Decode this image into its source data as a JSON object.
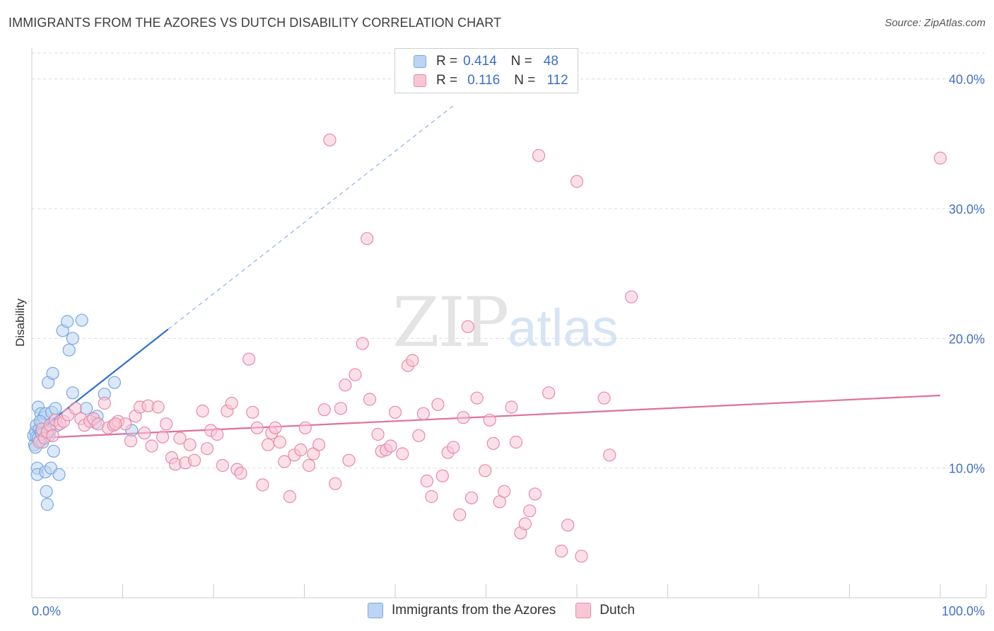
{
  "title": "IMMIGRANTS FROM THE AZORES VS DUTCH DISABILITY CORRELATION CHART",
  "source": "Source: ZipAtlas.com",
  "watermark": {
    "zip": "ZIP",
    "atlas": "atlas"
  },
  "legend": {
    "rows": [
      {
        "r_label": "R =",
        "r_value": "0.414",
        "n_label": "N =",
        "n_value": "48",
        "color": "#a9c8f0"
      },
      {
        "r_label": "R =",
        "r_value": "0.116",
        "n_label": "N =",
        "n_value": "112",
        "color": "#f5b3c8"
      }
    ]
  },
  "chart_data": {
    "type": "scatter",
    "xlabel": "",
    "ylabel": "Disability",
    "xlim": [
      0,
      100
    ],
    "ylim": [
      0,
      42
    ],
    "x_tick_labels": [
      "0.0%",
      "100.0%"
    ],
    "y_ticks": [
      10,
      20,
      30,
      40
    ],
    "y_tick_labels": [
      "10.0%",
      "20.0%",
      "30.0%",
      "40.0%"
    ],
    "grid": "horizontal dashed",
    "legend_position": "bottom",
    "series": [
      {
        "name": "Immigrants from the Azores",
        "color": "#7aa7e0",
        "fill": "#bcd5f3",
        "trend": {
          "x0": 0.3,
          "y0": 12.6,
          "x1": 15,
          "y1": 20.7,
          "dashed_to_x": 46.5,
          "dashed_to_y": 38.0
        },
        "points": [
          [
            0.2,
            12.5
          ],
          [
            0.3,
            11.8
          ],
          [
            0.4,
            12.8
          ],
          [
            0.4,
            11.6
          ],
          [
            0.5,
            13.3
          ],
          [
            0.5,
            12.4
          ],
          [
            0.6,
            10.0
          ],
          [
            0.6,
            9.5
          ],
          [
            0.7,
            14.7
          ],
          [
            0.7,
            12.3
          ],
          [
            0.8,
            13.0
          ],
          [
            0.9,
            12.1
          ],
          [
            1.0,
            14.2
          ],
          [
            1.0,
            12.8
          ],
          [
            1.1,
            13.5
          ],
          [
            1.2,
            12.0
          ],
          [
            1.2,
            12.9
          ],
          [
            1.3,
            13.9
          ],
          [
            1.4,
            12.4
          ],
          [
            1.5,
            14.2
          ],
          [
            1.5,
            9.7
          ],
          [
            1.6,
            8.2
          ],
          [
            1.7,
            7.2
          ],
          [
            1.8,
            16.6
          ],
          [
            1.9,
            12.5
          ],
          [
            2.0,
            12.9
          ],
          [
            2.1,
            10.0
          ],
          [
            2.2,
            14.3
          ],
          [
            2.3,
            17.3
          ],
          [
            2.4,
            11.3
          ],
          [
            2.6,
            14.6
          ],
          [
            2.8,
            13.3
          ],
          [
            3.0,
            9.5
          ],
          [
            3.4,
            20.6
          ],
          [
            3.9,
            21.3
          ],
          [
            4.1,
            19.1
          ],
          [
            4.5,
            20.0
          ],
          [
            4.5,
            15.8
          ],
          [
            5.5,
            21.4
          ],
          [
            6.0,
            14.6
          ],
          [
            7.0,
            13.5
          ],
          [
            7.2,
            14.0
          ],
          [
            8.0,
            15.7
          ],
          [
            9.1,
            16.6
          ],
          [
            11.0,
            12.9
          ],
          [
            1.1,
            12.6
          ],
          [
            0.9,
            13.6
          ],
          [
            1.7,
            12.7
          ]
        ]
      },
      {
        "name": "Dutch",
        "color": "#e68aa8",
        "fill": "#f9c6d6",
        "trend": {
          "x0": 0,
          "y0": 12.3,
          "x1": 100,
          "y1": 15.6
        },
        "points": [
          [
            0.8,
            12.0
          ],
          [
            1.1,
            13.0
          ],
          [
            1.4,
            12.3
          ],
          [
            1.7,
            12.8
          ],
          [
            2.0,
            13.3
          ],
          [
            2.3,
            12.5
          ],
          [
            2.6,
            13.7
          ],
          [
            3.1,
            13.4
          ],
          [
            3.5,
            13.6
          ],
          [
            4.0,
            14.1
          ],
          [
            4.8,
            14.6
          ],
          [
            5.4,
            13.8
          ],
          [
            5.8,
            13.3
          ],
          [
            6.4,
            13.6
          ],
          [
            6.8,
            13.8
          ],
          [
            7.3,
            13.4
          ],
          [
            8.0,
            15.0
          ],
          [
            8.4,
            13.1
          ],
          [
            9.0,
            13.3
          ],
          [
            9.5,
            13.6
          ],
          [
            10.3,
            13.4
          ],
          [
            10.9,
            12.1
          ],
          [
            11.4,
            14.0
          ],
          [
            11.9,
            14.7
          ],
          [
            12.4,
            12.7
          ],
          [
            12.8,
            14.8
          ],
          [
            13.2,
            11.7
          ],
          [
            13.9,
            14.7
          ],
          [
            14.4,
            12.4
          ],
          [
            14.8,
            13.4
          ],
          [
            15.4,
            10.8
          ],
          [
            15.8,
            10.3
          ],
          [
            16.3,
            12.3
          ],
          [
            16.9,
            10.4
          ],
          [
            17.4,
            11.8
          ],
          [
            17.9,
            10.6
          ],
          [
            18.8,
            14.4
          ],
          [
            19.3,
            11.5
          ],
          [
            19.7,
            12.9
          ],
          [
            20.4,
            12.6
          ],
          [
            21.0,
            10.2
          ],
          [
            21.5,
            14.4
          ],
          [
            22.0,
            15.0
          ],
          [
            22.6,
            9.9
          ],
          [
            23.0,
            9.6
          ],
          [
            23.9,
            18.4
          ],
          [
            24.3,
            14.3
          ],
          [
            24.8,
            13.1
          ],
          [
            25.4,
            8.7
          ],
          [
            26.0,
            11.8
          ],
          [
            26.4,
            12.7
          ],
          [
            26.8,
            13.1
          ],
          [
            27.3,
            12.0
          ],
          [
            27.8,
            10.5
          ],
          [
            28.4,
            7.8
          ],
          [
            28.9,
            11.0
          ],
          [
            29.6,
            11.4
          ],
          [
            30.1,
            13.1
          ],
          [
            30.5,
            10.2
          ],
          [
            31.0,
            11.1
          ],
          [
            31.6,
            11.8
          ],
          [
            32.2,
            14.5
          ],
          [
            32.8,
            35.3
          ],
          [
            33.4,
            8.8
          ],
          [
            34.0,
            14.6
          ],
          [
            34.5,
            16.4
          ],
          [
            34.9,
            10.6
          ],
          [
            35.6,
            17.2
          ],
          [
            36.4,
            19.6
          ],
          [
            36.9,
            27.7
          ],
          [
            37.2,
            15.3
          ],
          [
            38.1,
            12.6
          ],
          [
            38.5,
            11.3
          ],
          [
            39.0,
            11.4
          ],
          [
            39.5,
            11.7
          ],
          [
            40.0,
            14.3
          ],
          [
            40.8,
            11.1
          ],
          [
            41.4,
            17.9
          ],
          [
            41.9,
            18.3
          ],
          [
            42.6,
            12.5
          ],
          [
            43.1,
            14.2
          ],
          [
            43.5,
            9.0
          ],
          [
            44.0,
            7.8
          ],
          [
            44.7,
            14.9
          ],
          [
            45.2,
            9.4
          ],
          [
            45.8,
            11.2
          ],
          [
            46.4,
            11.6
          ],
          [
            47.1,
            6.4
          ],
          [
            47.5,
            13.9
          ],
          [
            48.0,
            20.9
          ],
          [
            48.4,
            7.7
          ],
          [
            49.0,
            15.4
          ],
          [
            49.9,
            9.8
          ],
          [
            50.4,
            13.7
          ],
          [
            50.8,
            11.9
          ],
          [
            51.5,
            7.4
          ],
          [
            52.0,
            8.2
          ],
          [
            52.8,
            14.7
          ],
          [
            53.3,
            12.0
          ],
          [
            53.8,
            5.0
          ],
          [
            54.3,
            5.7
          ],
          [
            54.8,
            6.7
          ],
          [
            55.4,
            8.0
          ],
          [
            55.8,
            34.1
          ],
          [
            56.9,
            15.8
          ],
          [
            58.3,
            3.6
          ],
          [
            59.0,
            5.6
          ],
          [
            60.0,
            32.1
          ],
          [
            60.5,
            3.2
          ],
          [
            63.0,
            15.4
          ],
          [
            63.6,
            11.0
          ],
          [
            66.0,
            23.2
          ],
          [
            100.0,
            33.9
          ],
          [
            9.2,
            13.4
          ]
        ]
      }
    ]
  }
}
